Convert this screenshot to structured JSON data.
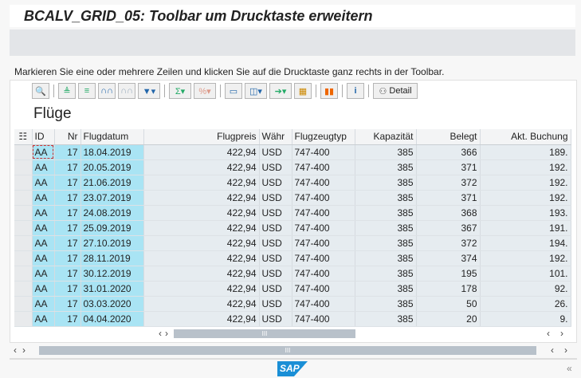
{
  "title": "BCALV_GRID_05: Toolbar um Drucktaste erweitern",
  "instruction": "Markieren Sie eine oder mehrere Zeilen und klicken Sie auf die Drucktaste ganz rechts in der Toolbar.",
  "toolbar": {
    "detail_label": "Detail"
  },
  "grid": {
    "title": "Flüge",
    "columns": [
      "ID",
      "Nr",
      "Flugdatum",
      "Flugpreis",
      "Währ",
      "Flugzeugtyp",
      "Kapazität",
      "Belegt",
      "Akt. Buchung"
    ],
    "rows": [
      [
        "AA",
        "17",
        "18.04.2019",
        "422,94",
        "USD",
        "747-400",
        "385",
        "366",
        "189."
      ],
      [
        "AA",
        "17",
        "20.05.2019",
        "422,94",
        "USD",
        "747-400",
        "385",
        "371",
        "192."
      ],
      [
        "AA",
        "17",
        "21.06.2019",
        "422,94",
        "USD",
        "747-400",
        "385",
        "372",
        "192."
      ],
      [
        "AA",
        "17",
        "23.07.2019",
        "422,94",
        "USD",
        "747-400",
        "385",
        "371",
        "192."
      ],
      [
        "AA",
        "17",
        "24.08.2019",
        "422,94",
        "USD",
        "747-400",
        "385",
        "368",
        "193."
      ],
      [
        "AA",
        "17",
        "25.09.2019",
        "422,94",
        "USD",
        "747-400",
        "385",
        "367",
        "191."
      ],
      [
        "AA",
        "17",
        "27.10.2019",
        "422,94",
        "USD",
        "747-400",
        "385",
        "372",
        "194."
      ],
      [
        "AA",
        "17",
        "28.11.2019",
        "422,94",
        "USD",
        "747-400",
        "385",
        "374",
        "192."
      ],
      [
        "AA",
        "17",
        "30.12.2019",
        "422,94",
        "USD",
        "747-400",
        "385",
        "195",
        "101."
      ],
      [
        "AA",
        "17",
        "31.01.2020",
        "422,94",
        "USD",
        "747-400",
        "385",
        "178",
        "92."
      ],
      [
        "AA",
        "17",
        "03.03.2020",
        "422,94",
        "USD",
        "747-400",
        "385",
        "50",
        "26."
      ],
      [
        "AA",
        "17",
        "04.04.2020",
        "422,94",
        "USD",
        "747-400",
        "385",
        "20",
        "9."
      ]
    ]
  },
  "scroll_thumb": "III",
  "logo": "SAP"
}
